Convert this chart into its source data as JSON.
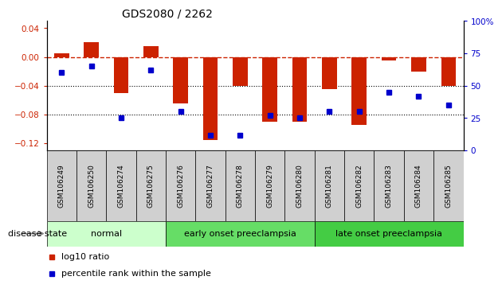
{
  "title": "GDS2080 / 2262",
  "samples": [
    "GSM106249",
    "GSM106250",
    "GSM106274",
    "GSM106275",
    "GSM106276",
    "GSM106277",
    "GSM106278",
    "GSM106279",
    "GSM106280",
    "GSM106281",
    "GSM106282",
    "GSM106283",
    "GSM106284",
    "GSM106285"
  ],
  "log10_ratio": [
    0.005,
    0.02,
    -0.05,
    0.015,
    -0.065,
    -0.115,
    -0.04,
    -0.09,
    -0.09,
    -0.045,
    -0.095,
    -0.005,
    -0.02,
    -0.04
  ],
  "percentile_rank": [
    60,
    65,
    25,
    62,
    30,
    12,
    12,
    27,
    25,
    30,
    30,
    45,
    42,
    35
  ],
  "ylim_left": [
    -0.13,
    0.05
  ],
  "ylim_right": [
    0,
    100
  ],
  "yticks_left": [
    -0.12,
    -0.08,
    -0.04,
    0,
    0.04
  ],
  "yticks_right": [
    0,
    25,
    50,
    75,
    100
  ],
  "ytick_right_labels": [
    "0",
    "25",
    "50",
    "75",
    "100%"
  ],
  "hline_y": 0,
  "dotted_lines": [
    -0.04,
    -0.08
  ],
  "bar_color": "#cc2200",
  "dot_color": "#0000cc",
  "dashed_color": "#cc2200",
  "groups": [
    {
      "label": "normal",
      "start": 0,
      "end": 4,
      "color": "#ccffcc"
    },
    {
      "label": "early onset preeclampsia",
      "start": 4,
      "end": 9,
      "color": "#66dd66"
    },
    {
      "label": "late onset preeclampsia",
      "start": 9,
      "end": 14,
      "color": "#44cc44"
    }
  ],
  "disease_state_label": "disease state",
  "legend_bar_label": "log10 ratio",
  "legend_dot_label": "percentile rank within the sample",
  "bar_width": 0.5
}
